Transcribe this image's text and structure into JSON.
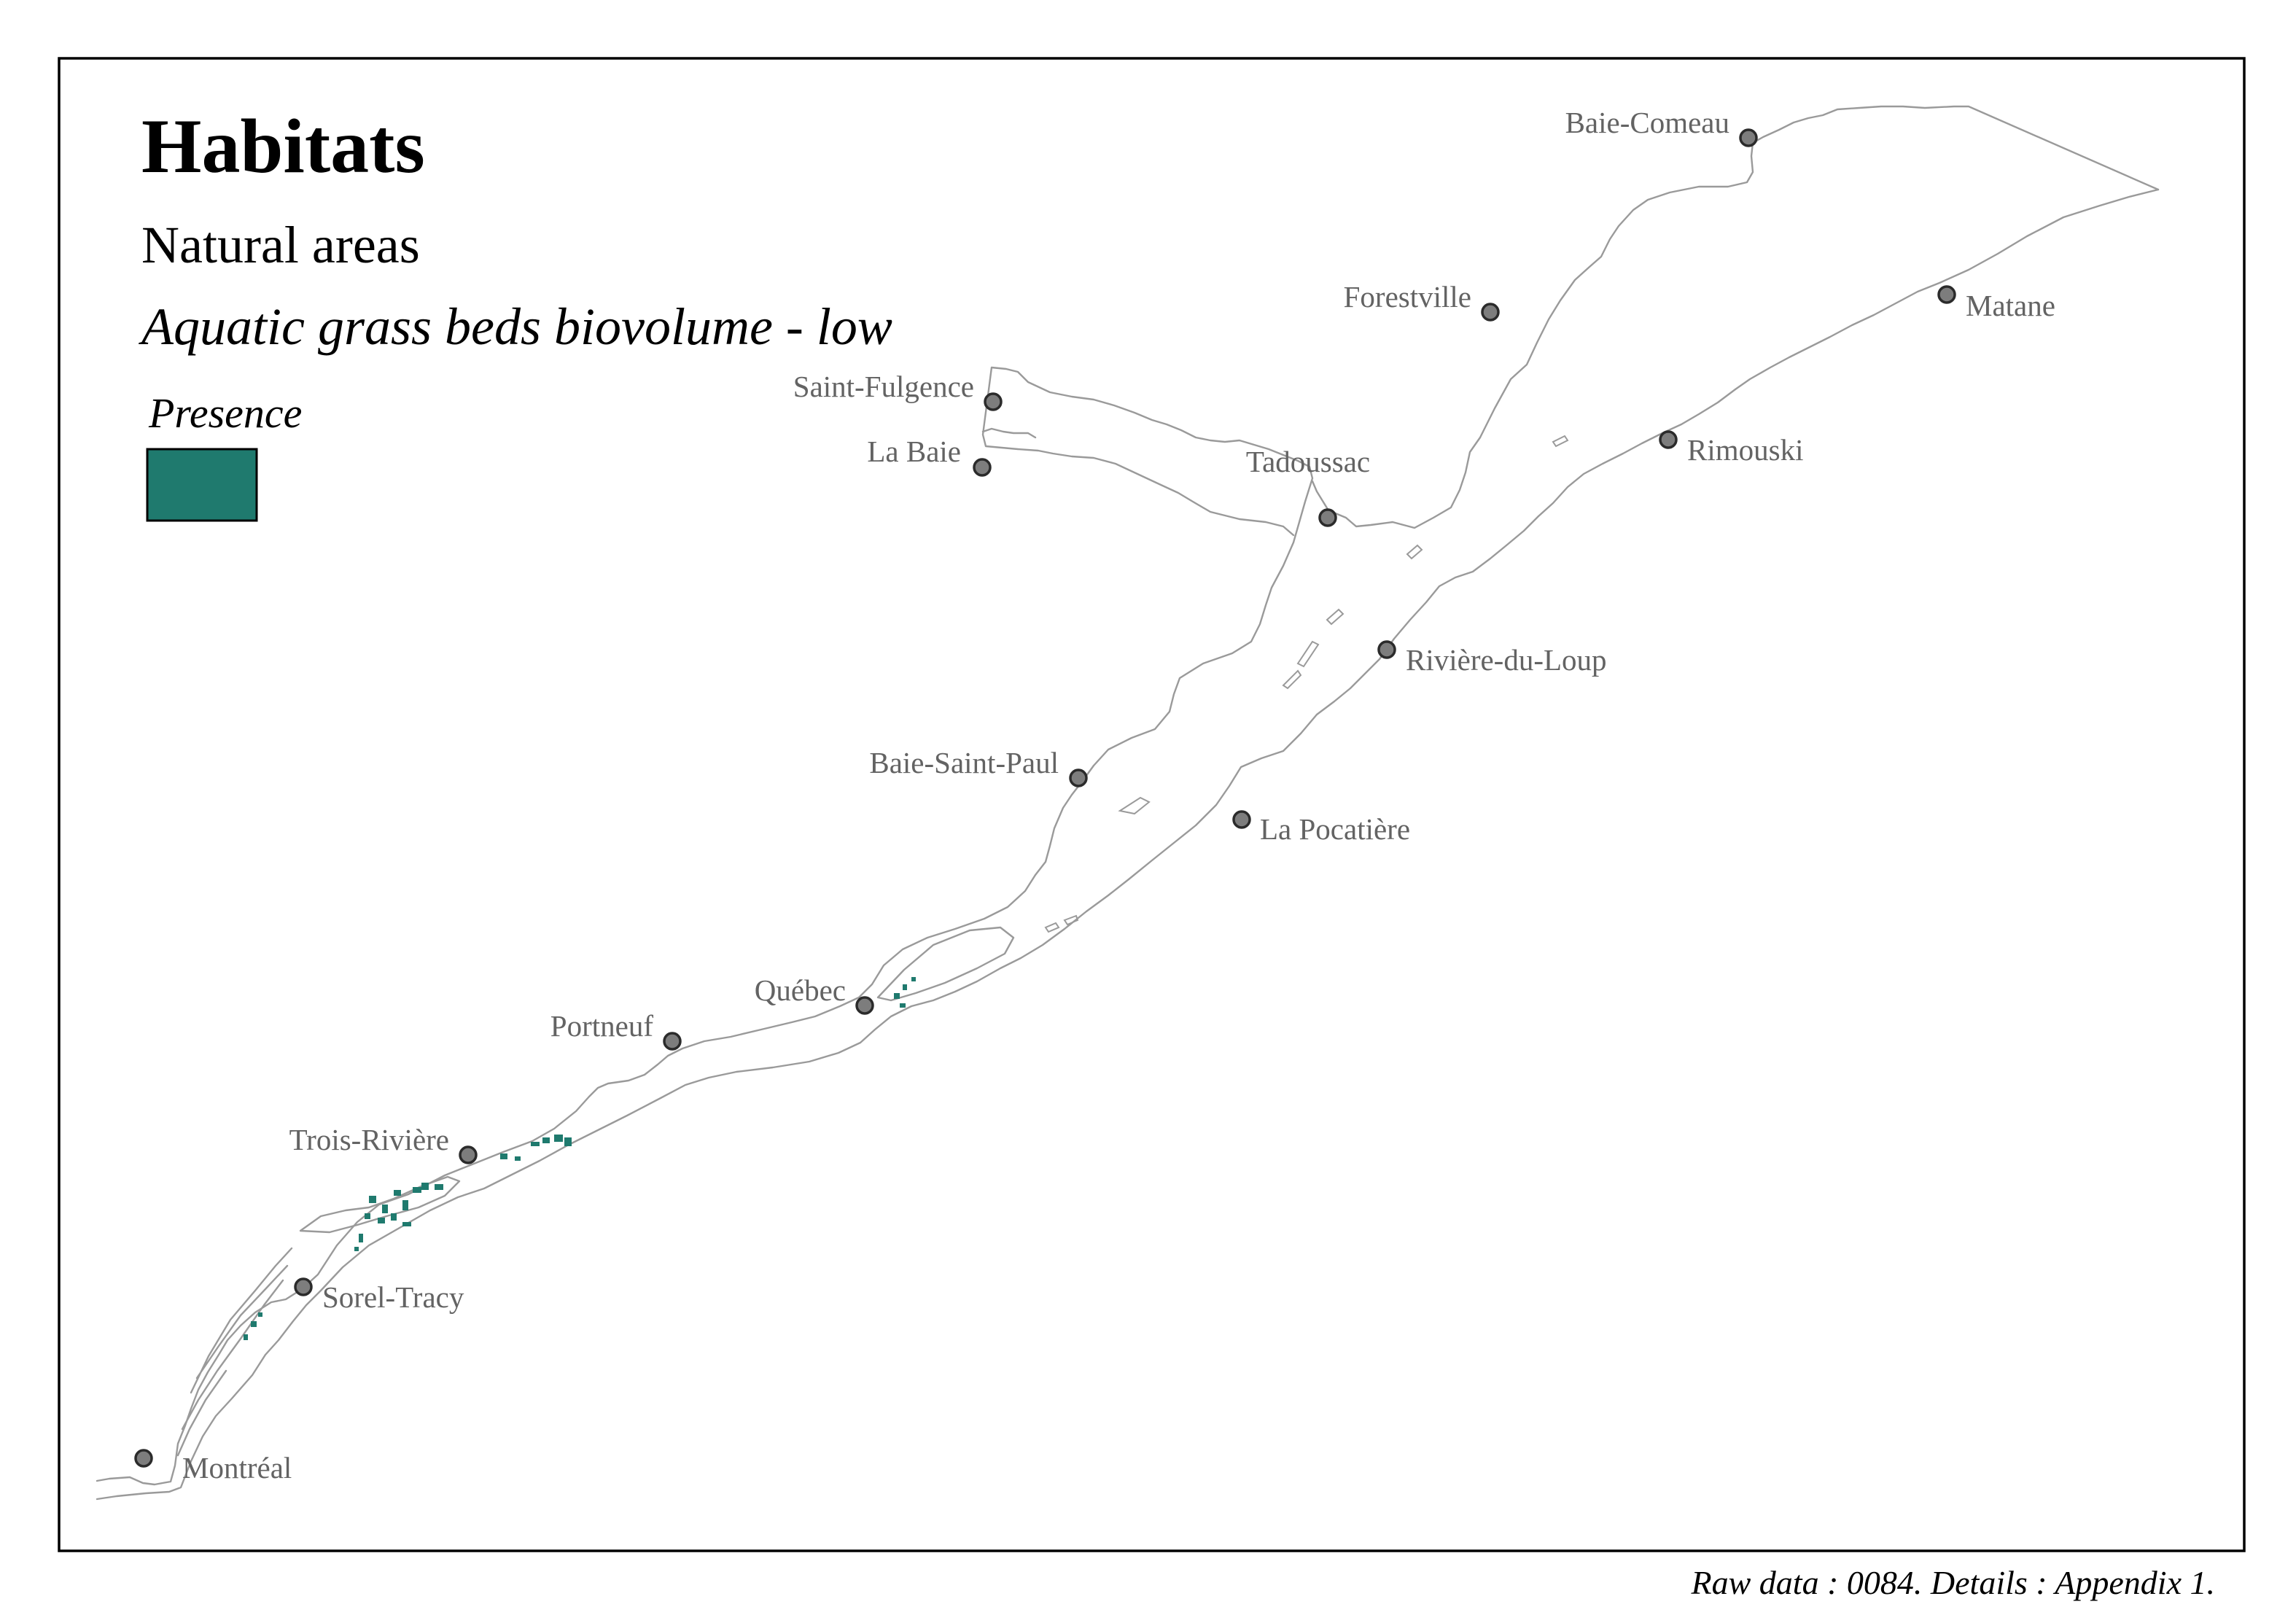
{
  "map": {
    "title": "Habitats",
    "subtitle": "Natural areas",
    "layer_name": "Aquatic grass beds biovolume - low",
    "legend": {
      "title": "Presence",
      "items": [
        {
          "label": "",
          "color": "#1f7a6e"
        }
      ]
    },
    "source_note": "Raw data : 0084. Details : Appendix 1.",
    "colors": {
      "frame": "#000000",
      "shoreline": "#9a9a9a",
      "grass_bed": "#1f7a6e",
      "city_marker": "#7d7d7d",
      "city_label": "#636363"
    },
    "cities": [
      {
        "name": "Baie-Comeau"
      },
      {
        "name": "Forestville"
      },
      {
        "name": "Matane"
      },
      {
        "name": "Saint-Fulgence"
      },
      {
        "name": "La Baie"
      },
      {
        "name": "Tadoussac"
      },
      {
        "name": "Rimouski"
      },
      {
        "name": "Rivière-du-Loup"
      },
      {
        "name": "Baie-Saint-Paul"
      },
      {
        "name": "La Pocatière"
      },
      {
        "name": "Québec"
      },
      {
        "name": "Portneuf"
      },
      {
        "name": "Trois-Rivière"
      },
      {
        "name": "Sorel-Tracy"
      },
      {
        "name": "Montréal"
      }
    ]
  }
}
